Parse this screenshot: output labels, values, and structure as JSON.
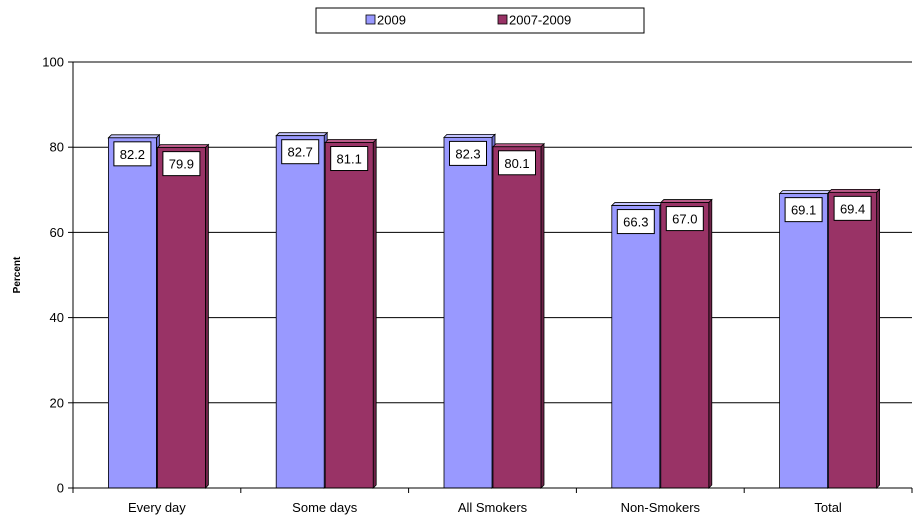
{
  "chart_data": {
    "type": "bar",
    "categories": [
      "Every day",
      "Some days",
      "All Smokers",
      "Non-Smokers",
      "Total"
    ],
    "series": [
      {
        "name": "2009",
        "values": [
          82.2,
          82.7,
          82.3,
          66.3,
          69.1
        ],
        "labels": [
          "82.2",
          "82.7",
          "82.3",
          "66.3",
          "69.1"
        ]
      },
      {
        "name": "2007-2009",
        "values": [
          79.9,
          81.1,
          80.1,
          67.0,
          69.4
        ],
        "labels": [
          "79.9",
          "81.1",
          "80.1",
          "67.0",
          "69.4"
        ]
      }
    ],
    "ylabel": "Percent",
    "xlabel": "",
    "ylim": [
      0,
      100
    ],
    "yticks": [
      0,
      20,
      40,
      60,
      80,
      100
    ],
    "grid": true,
    "legend_position": "top",
    "colors": {
      "series_fill": [
        "#9999FF",
        "#993366"
      ],
      "series_top": [
        "#C5C5FF",
        "#B85A87"
      ],
      "series_side": [
        "#7070CC",
        "#6E2449"
      ],
      "grid": "#000000",
      "background": "#ffffff"
    }
  }
}
